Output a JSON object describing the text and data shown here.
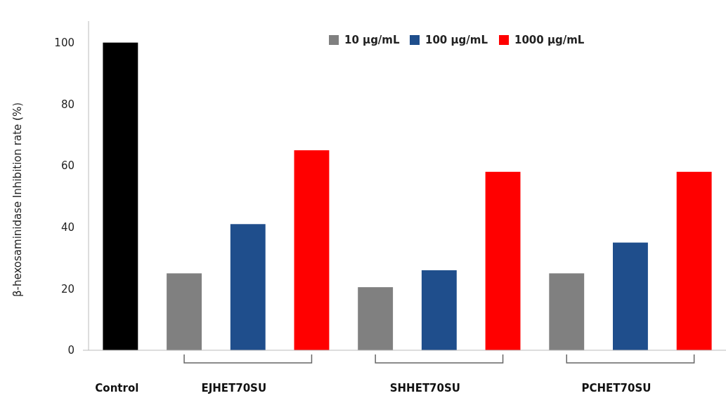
{
  "chart_data": {
    "type": "bar",
    "ylabel": "β-hexosaminidase Inhibition rate (%)",
    "categories": [
      "Control",
      "EJHET70SU",
      "SHHET70SU",
      "PCHET70SU"
    ],
    "series": [
      {
        "color": "#000000",
        "values": [
          100,
          null,
          null,
          null
        ]
      },
      {
        "name": "10 μg/mL",
        "color": "#808080",
        "values": [
          null,
          25,
          20.5,
          25
        ]
      },
      {
        "name": "100 μg/mL",
        "color": "#1f4e8c",
        "values": [
          null,
          41,
          26,
          35
        ]
      },
      {
        "name": "1000 μg/mL",
        "color": "#ff0000",
        "values": [
          null,
          65,
          58,
          58
        ]
      }
    ],
    "ylim": [
      0,
      107
    ],
    "yticks": [
      0,
      20,
      40,
      60,
      80,
      100
    ],
    "grid": false,
    "legend": "top right"
  }
}
